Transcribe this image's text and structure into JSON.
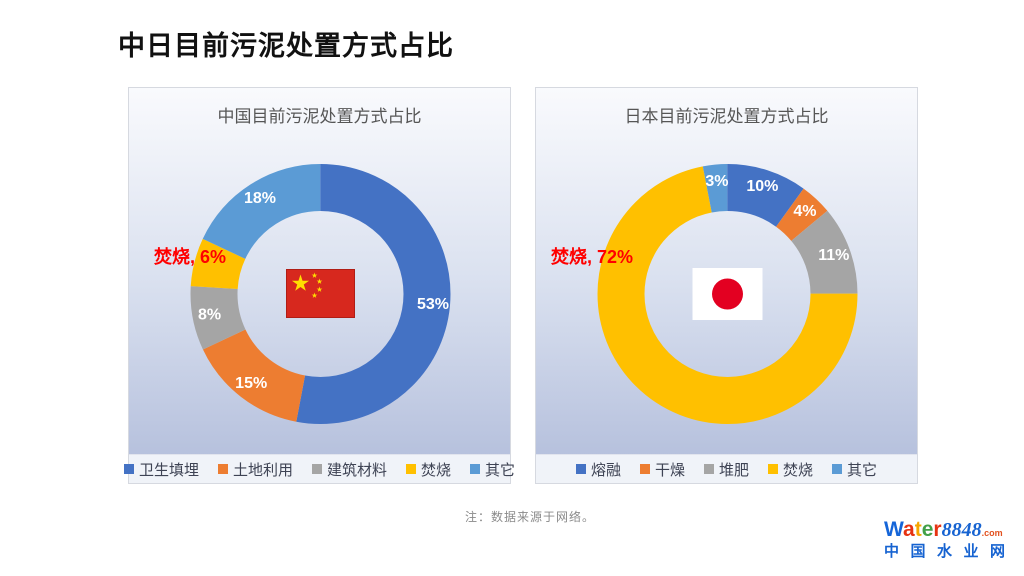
{
  "page": {
    "title": "中日目前污泥处置方式占比",
    "note": "注：数据来源于网络。",
    "logo": {
      "word_letters": [
        {
          "ch": "W",
          "color": "#1565d8"
        },
        {
          "ch": "a",
          "color": "#e63312"
        },
        {
          "ch": "t",
          "color": "#f7a600"
        },
        {
          "ch": "e",
          "color": "#43a047"
        },
        {
          "ch": "r",
          "color": "#e63312"
        }
      ],
      "number": "8848",
      "dotcom": ".com",
      "subtitle": "中国水业网"
    }
  },
  "chart_data": [
    {
      "type": "pie",
      "subtype": "donut",
      "title": "中国目前污泥处置方式占比",
      "categories": [
        "卫生填埋",
        "土地利用",
        "建筑材料",
        "焚烧",
        "其它"
      ],
      "values": [
        53,
        15,
        8,
        6,
        18
      ],
      "slice_labels": [
        "53%",
        "15%",
        "8%",
        "",
        "18%"
      ],
      "colors": [
        "#4472C4",
        "#ED7D31",
        "#A5A5A5",
        "#FFC000",
        "#5B9BD5"
      ],
      "highlight": {
        "text": "焚烧, 6%",
        "color": "#FF0000",
        "category": "焚烧",
        "value": 6
      },
      "center_icon": "china-flag",
      "legend_position": "bottom",
      "start_angle": "top",
      "direction": "clockwise",
      "donut_hole_ratio": 0.64
    },
    {
      "type": "pie",
      "subtype": "donut",
      "title": "日本目前污泥处置方式占比",
      "categories": [
        "熔融",
        "干燥",
        "堆肥",
        "焚烧",
        "其它"
      ],
      "values": [
        10,
        4,
        11,
        72,
        3
      ],
      "slice_labels": [
        "10%",
        "4%",
        "11%",
        "",
        "3%"
      ],
      "colors": [
        "#4472C4",
        "#ED7D31",
        "#A5A5A5",
        "#FFC000",
        "#5B9BD5"
      ],
      "highlight": {
        "text": "焚烧, 72%",
        "color": "#FF0000",
        "category": "焚烧",
        "value": 72
      },
      "center_icon": "japan-flag",
      "legend_position": "bottom",
      "start_angle": "top",
      "direction": "clockwise",
      "donut_hole_ratio": 0.64
    }
  ]
}
